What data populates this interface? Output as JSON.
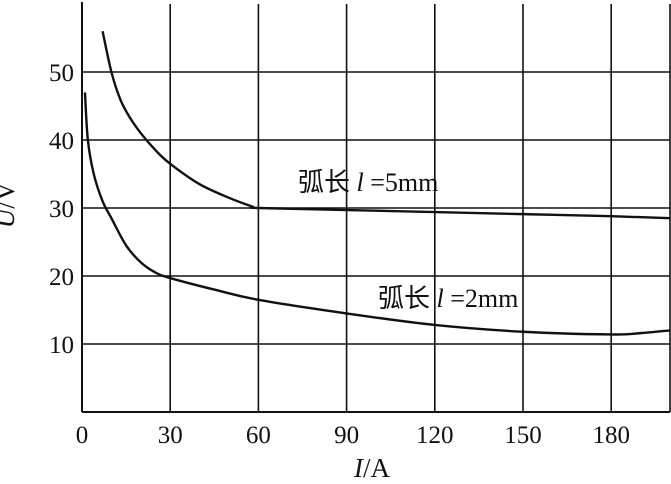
{
  "chart_data": {
    "type": "line",
    "title": "",
    "xlabel": {
      "var": "I",
      "unit": "/A"
    },
    "ylabel": {
      "var": "U",
      "unit": "/V"
    },
    "xlim": [
      0,
      200
    ],
    "ylim": [
      0,
      60
    ],
    "x_ticks": [
      "0",
      "30",
      "60",
      "90",
      "120",
      "150",
      "180"
    ],
    "y_ticks": [
      "10",
      "20",
      "30",
      "40",
      "50"
    ],
    "grid": true,
    "series": [
      {
        "label": {
          "prefix": "弧长 ",
          "var": "l",
          "suffix": " =5mm"
        },
        "x": [
          7,
          10,
          13,
          16,
          20,
          25,
          30,
          40,
          50,
          58,
          60,
          90,
          120,
          150,
          180,
          200
        ],
        "y": [
          56,
          50,
          46,
          43.5,
          41,
          38.5,
          36.5,
          33.5,
          31.5,
          30.2,
          30,
          29.7,
          29.4,
          29.1,
          28.8,
          28.5
        ]
      },
      {
        "label": {
          "prefix": "弧长 ",
          "var": "l",
          "suffix": " =2mm"
        },
        "x": [
          1,
          2,
          4,
          7,
          10,
          15,
          20,
          25,
          30,
          45,
          60,
          90,
          120,
          150,
          180,
          190,
          200
        ],
        "y": [
          47,
          40,
          35,
          31,
          28.5,
          24.5,
          22,
          20.5,
          19.7,
          18,
          16.5,
          14.5,
          12.8,
          11.8,
          11.4,
          11.6,
          12
        ]
      }
    ]
  }
}
